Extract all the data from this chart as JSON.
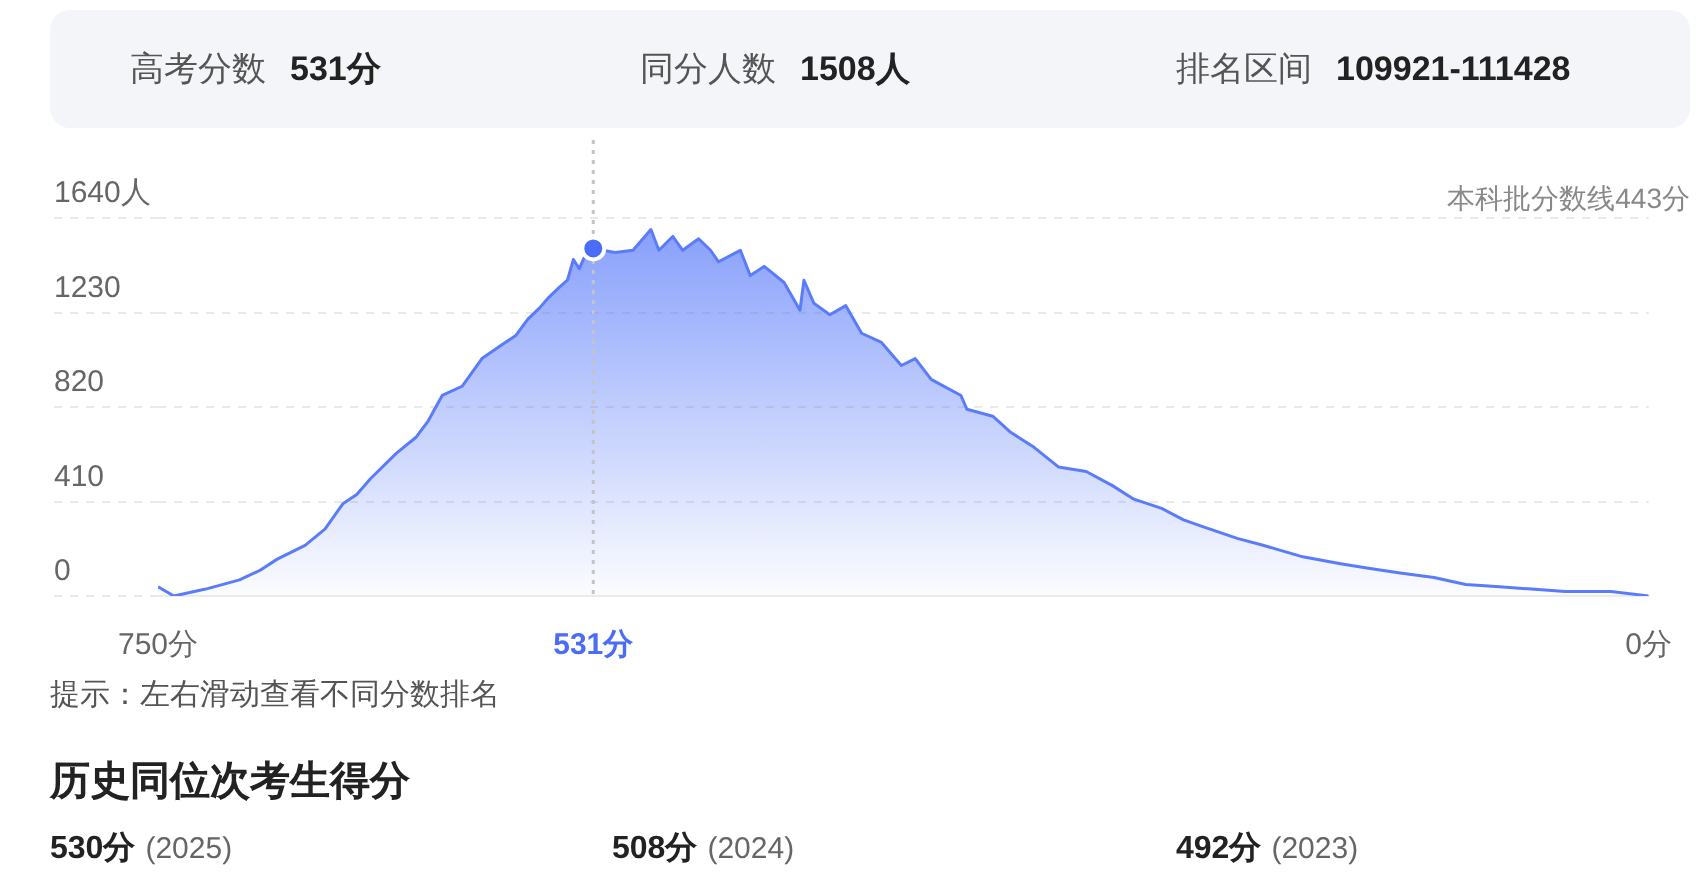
{
  "chart_data": {
    "type": "area",
    "series": [
      {
        "color": "#5b7cfa",
        "x": [
          750,
          742,
          726,
          709,
          699,
          690,
          676,
          666,
          657,
          650,
          643,
          630,
          620,
          614,
          607,
          597,
          587,
          577,
          570,
          564,
          558,
          554,
          548,
          544,
          541,
          538,
          535,
          531,
          520,
          511,
          502,
          498,
          491,
          486,
          478,
          472,
          468,
          457,
          452,
          445,
          435,
          427,
          425,
          420,
          412,
          404,
          396,
          386,
          376,
          369,
          361,
          346,
          343,
          330,
          321,
          310,
          297,
          283,
          270,
          259,
          245,
          234,
          224,
          207,
          194,
          174,
          155,
          141,
          125,
          108,
          92,
          75,
          59,
          42,
          19,
          0
        ],
        "values": [
          40,
          0,
          30,
          70,
          110,
          160,
          220,
          290,
          400,
          440,
          510,
          620,
          690,
          760,
          870,
          910,
          1030,
          1090,
          1130,
          1200,
          1250,
          1290,
          1340,
          1370,
          1460,
          1420,
          1480,
          1508,
          1490,
          1500,
          1590,
          1500,
          1560,
          1500,
          1550,
          1500,
          1450,
          1500,
          1390,
          1430,
          1360,
          1240,
          1370,
          1270,
          1220,
          1260,
          1140,
          1100,
          1000,
          1030,
          940,
          870,
          810,
          780,
          710,
          650,
          560,
          540,
          480,
          420,
          380,
          330,
          300,
          250,
          220,
          170,
          140,
          120,
          100,
          80,
          50,
          40,
          30,
          20,
          20,
          0
        ]
      },
      {
        "type": "scatter",
        "color": "#4a6cf7",
        "marker": "circle",
        "x": [
          531
        ],
        "values": [
          1508
        ]
      }
    ],
    "xlim": [
      750,
      0
    ],
    "xticks": [
      {
        "value": 750,
        "label": "750分"
      },
      {
        "value": 531,
        "label": "531分"
      },
      {
        "value": 0,
        "label": "0分"
      }
    ],
    "ylim": [
      0,
      1640
    ],
    "yticks": [
      0,
      410,
      820,
      1230,
      {
        "value": 1640,
        "label": "1640人"
      }
    ],
    "grid": "y",
    "ref_lines": [
      {
        "axis": "x",
        "value": 531,
        "color": "#c4c4c4",
        "line_style": "dotted"
      }
    ],
    "annotations": [
      "高考分数",
      "531分",
      "同分人数",
      "1508人",
      "排名区间",
      "109921-111428",
      "本科批分数线443分",
      "提示：左右滑动查看不同分数排名",
      "历史同位次考生得分",
      "530分",
      "(2025)",
      "508分",
      "(2024)",
      "492分",
      "(2023)"
    ]
  }
}
